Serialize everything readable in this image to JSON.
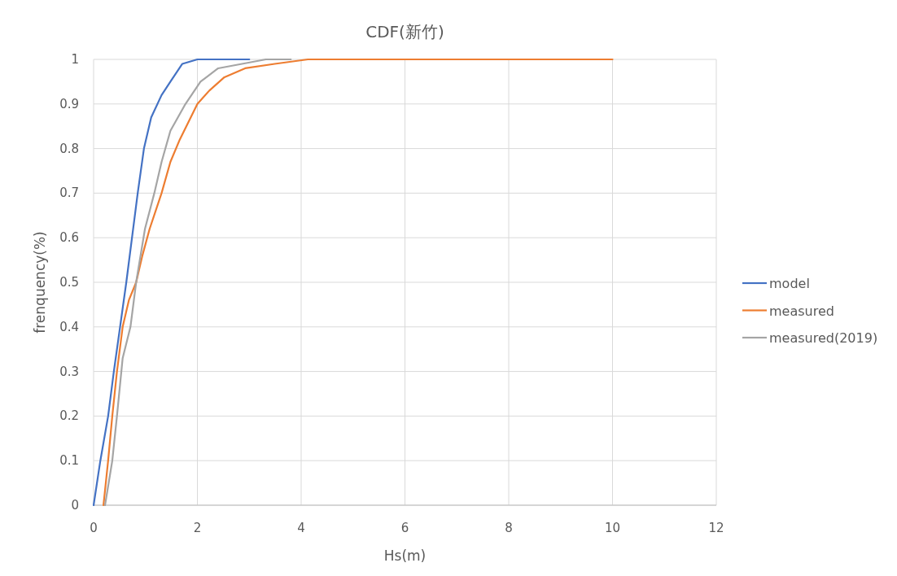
{
  "chart_data": {
    "type": "line",
    "title": "CDF(新竹)",
    "xlabel": "Hs(m)",
    "ylabel": "frenquency(%)",
    "xlim": [
      0,
      12
    ],
    "ylim": [
      0,
      1
    ],
    "xticks": [
      0,
      2,
      4,
      6,
      8,
      10,
      12
    ],
    "yticks": [
      0,
      0.1,
      0.2,
      0.3,
      0.4,
      0.5,
      0.6,
      0.7,
      0.8,
      0.9,
      1
    ],
    "grid": true,
    "legend": "right",
    "marker": "none",
    "line_style": "solid",
    "series": [
      {
        "name": "model",
        "color": "#4472c4",
        "x": [
          0,
          0.13,
          0.28,
          0.39,
          0.51,
          0.63,
          0.74,
          0.85,
          0.97,
          1.11,
          1.31,
          1.48,
          1.71,
          2.0,
          2.63,
          3.0
        ],
        "values": [
          0,
          0.1,
          0.2,
          0.3,
          0.4,
          0.5,
          0.6,
          0.7,
          0.8,
          0.87,
          0.92,
          0.95,
          0.99,
          1.0,
          1.0,
          1.0
        ]
      },
      {
        "name": "measured",
        "color": "#ed7d31",
        "x": [
          0.19,
          0.28,
          0.36,
          0.45,
          0.56,
          0.68,
          0.82,
          0.94,
          1.08,
          1.31,
          1.48,
          1.66,
          2.0,
          2.23,
          2.52,
          2.92,
          3.49,
          4.13,
          10.0
        ],
        "values": [
          0,
          0.1,
          0.2,
          0.3,
          0.4,
          0.46,
          0.5,
          0.56,
          0.62,
          0.7,
          0.77,
          0.82,
          0.9,
          0.93,
          0.96,
          0.98,
          0.99,
          1.0,
          1.0
        ]
      },
      {
        "name": "measured(2019)",
        "color": "#a5a5a5",
        "x": [
          0.22,
          0.36,
          0.45,
          0.56,
          0.71,
          0.82,
          0.99,
          1.17,
          1.31,
          1.48,
          1.77,
          2.06,
          2.4,
          2.86,
          3.32,
          3.8
        ],
        "values": [
          0,
          0.1,
          0.2,
          0.33,
          0.4,
          0.5,
          0.62,
          0.7,
          0.77,
          0.84,
          0.9,
          0.95,
          0.98,
          0.99,
          1.0,
          1.0
        ]
      }
    ]
  }
}
